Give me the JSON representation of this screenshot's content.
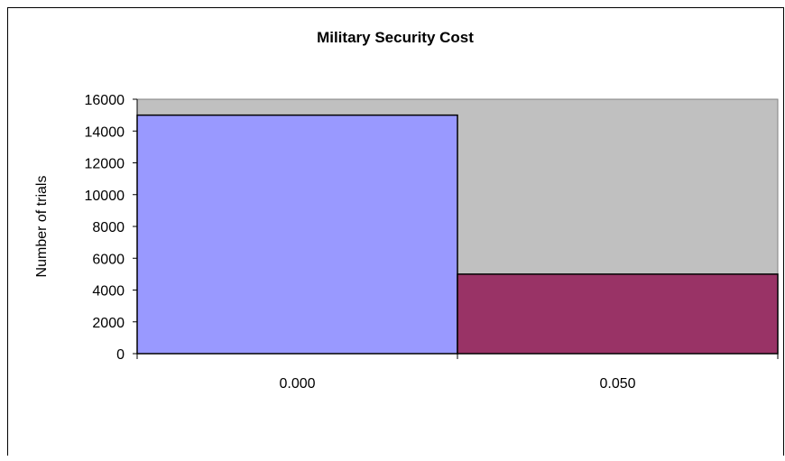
{
  "chart_data": {
    "type": "bar",
    "title": "Military Security Cost",
    "xlabel": "",
    "ylabel": "Number of trials",
    "categories": [
      "0.000",
      "0.050"
    ],
    "values": [
      15000,
      5000
    ],
    "ylim": [
      0,
      16000
    ],
    "yticks": [
      "0",
      "2000",
      "4000",
      "6000",
      "8000",
      "10000",
      "12000",
      "14000",
      "16000"
    ],
    "grid": false,
    "legend": "none",
    "bar_colors": [
      "#9999ff",
      "#993366"
    ],
    "plot_background": "#c0c0c0",
    "bar_edge_color": "#000000"
  }
}
